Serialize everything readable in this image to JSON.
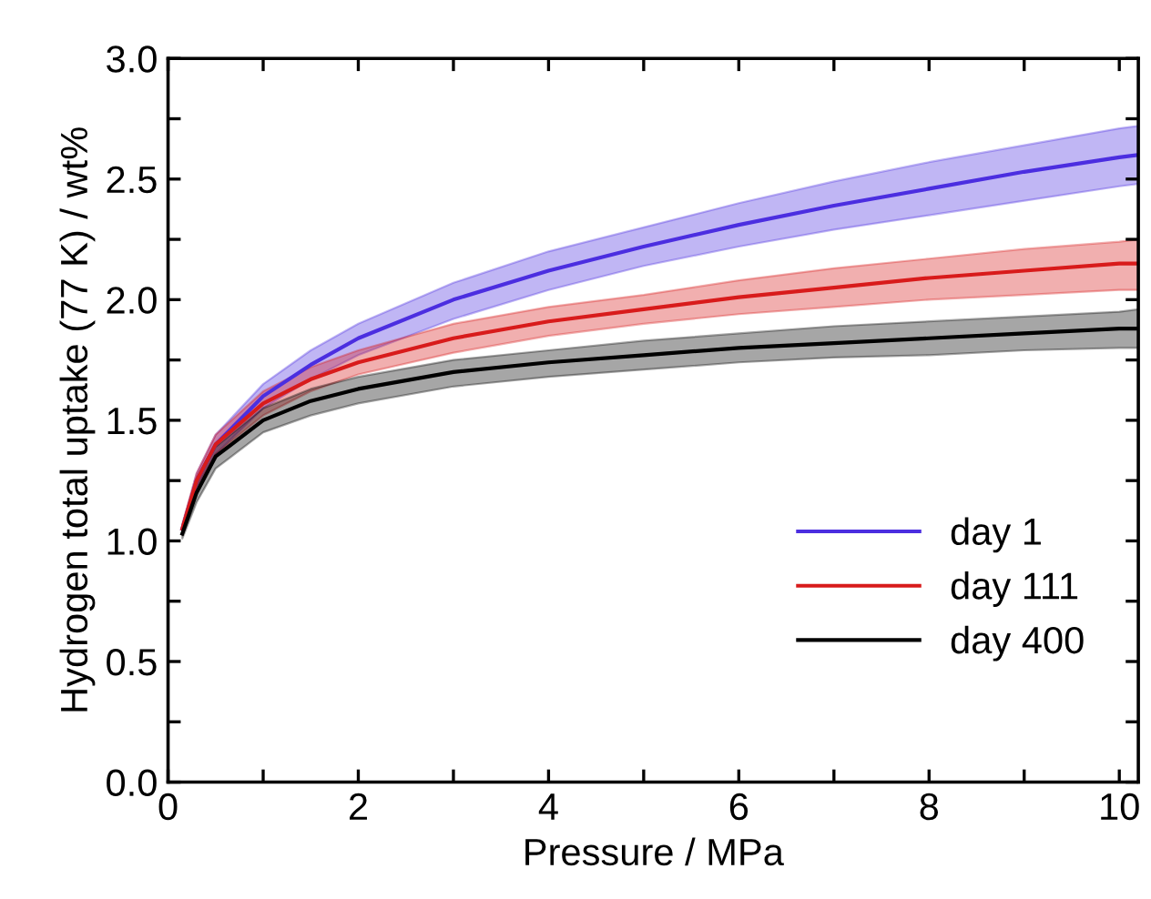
{
  "chart_data": {
    "type": "line",
    "xlabel": "Pressure / MPa",
    "ylabel": "Hydrogen total uptake (77 K) / wt%",
    "xlim": [
      0,
      10.2
    ],
    "ylim": [
      0,
      3.0
    ],
    "xticks": [
      0,
      {
        "value": 1,
        "label": null
      },
      2,
      {
        "value": 3,
        "label": null
      },
      4,
      {
        "value": 5,
        "label": null
      },
      6,
      {
        "value": 7,
        "label": null
      },
      8,
      {
        "value": 9,
        "label": null
      },
      10
    ],
    "yticks": [
      "0.0",
      {
        "value": 0.25,
        "label": null
      },
      0.5,
      {
        "value": 0.75,
        "label": null
      },
      "1.0",
      {
        "value": 1.25,
        "label": null
      },
      1.5,
      {
        "value": 1.75,
        "label": null
      },
      "2.0",
      {
        "value": 2.25,
        "label": null
      },
      2.5,
      {
        "value": 2.75,
        "label": null
      },
      "3.0"
    ],
    "x": [
      0.15,
      0.3,
      0.5,
      1,
      1.5,
      2,
      3,
      4,
      5,
      6,
      7,
      8,
      9,
      10,
      10.2
    ],
    "legend": "bottom right",
    "grid": false,
    "marker": "none",
    "line_style": "solid",
    "series": [
      {
        "name": "day 1",
        "color": "#4b2ee0",
        "values": [
          1.05,
          1.25,
          1.4,
          1.6,
          1.73,
          1.84,
          2.0,
          2.12,
          2.22,
          2.31,
          2.39,
          2.46,
          2.53,
          2.59,
          2.6
        ],
        "lower": [
          1.04,
          1.22,
          1.36,
          1.55,
          1.67,
          1.77,
          1.92,
          2.04,
          2.14,
          2.22,
          2.29,
          2.35,
          2.41,
          2.47,
          2.48
        ],
        "upper": [
          1.06,
          1.28,
          1.44,
          1.65,
          1.79,
          1.9,
          2.07,
          2.2,
          2.3,
          2.4,
          2.49,
          2.57,
          2.64,
          2.71,
          2.72
        ]
      },
      {
        "name": "day 111",
        "color": "#d81b1b",
        "values": [
          1.05,
          1.25,
          1.4,
          1.57,
          1.67,
          1.74,
          1.84,
          1.91,
          1.96,
          2.01,
          2.05,
          2.09,
          2.12,
          2.15,
          2.15
        ],
        "lower": [
          1.03,
          1.22,
          1.36,
          1.52,
          1.62,
          1.69,
          1.78,
          1.85,
          1.9,
          1.94,
          1.97,
          2.0,
          2.02,
          2.04,
          2.04
        ],
        "upper": [
          1.07,
          1.28,
          1.44,
          1.62,
          1.72,
          1.79,
          1.9,
          1.97,
          2.02,
          2.08,
          2.13,
          2.17,
          2.21,
          2.24,
          2.25
        ]
      },
      {
        "name": "day 400",
        "color": "#000000",
        "values": [
          1.03,
          1.2,
          1.35,
          1.5,
          1.58,
          1.63,
          1.7,
          1.74,
          1.77,
          1.8,
          1.82,
          1.84,
          1.86,
          1.88,
          1.88
        ],
        "lower": [
          1.01,
          1.16,
          1.3,
          1.45,
          1.52,
          1.57,
          1.64,
          1.68,
          1.71,
          1.74,
          1.76,
          1.77,
          1.79,
          1.8,
          1.8
        ],
        "upper": [
          1.05,
          1.24,
          1.39,
          1.55,
          1.63,
          1.68,
          1.75,
          1.79,
          1.83,
          1.86,
          1.89,
          1.91,
          1.93,
          1.95,
          1.96
        ]
      }
    ]
  }
}
